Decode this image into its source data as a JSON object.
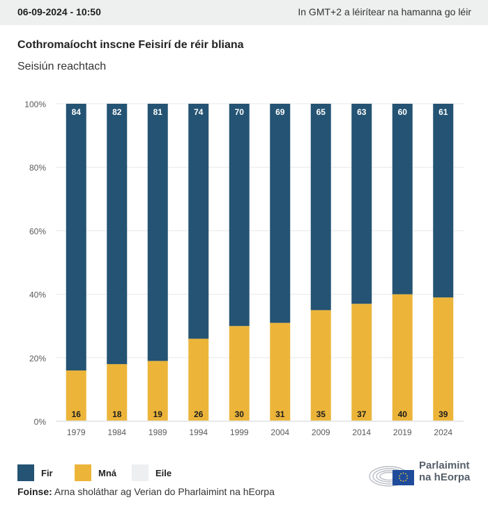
{
  "header": {
    "datetime": "06-09-2024 - 10:50",
    "timezone_note": "In GMT+2 a léirítear na hamanna go léir"
  },
  "title": "Cothromaíocht inscne Feisirí de réir bliana",
  "subtitle": "Seisiún reachtach",
  "legend": [
    {
      "label": "Fir",
      "color": "#245373"
    },
    {
      "label": "Mná",
      "color": "#ecb53a"
    },
    {
      "label": "Eile",
      "color": "#eeeff0"
    }
  ],
  "source": {
    "label": "Foinse:",
    "text": "Arna sholáthar ag Verian do Pharlaimint na hEorpa"
  },
  "logo": {
    "line1": "Parlaimint",
    "line2": "na hEorpa"
  },
  "chart_data": {
    "type": "bar",
    "stacked": true,
    "title": "Cothromaíocht inscne Feisirí de réir bliana",
    "subtitle": "Seisiún reachtach",
    "xlabel": "",
    "ylabel": "",
    "ylim": [
      0,
      100
    ],
    "yticks": [
      "0%",
      "20%",
      "40%",
      "60%",
      "80%",
      "100%"
    ],
    "ytick_values": [
      0,
      20,
      40,
      60,
      80,
      100
    ],
    "grid": true,
    "legend_position": "bottom-left",
    "categories": [
      "1979",
      "1984",
      "1989",
      "1994",
      "1999",
      "2004",
      "2009",
      "2014",
      "2019",
      "2024"
    ],
    "series": [
      {
        "name": "Mná",
        "color": "#ecb53a",
        "values": [
          16,
          18,
          19,
          26,
          30,
          31,
          35,
          37,
          40,
          39
        ]
      },
      {
        "name": "Fir",
        "color": "#245373",
        "values": [
          84,
          82,
          81,
          74,
          70,
          69,
          65,
          63,
          60,
          61
        ]
      },
      {
        "name": "Eile",
        "color": "#eeeff0",
        "values": [
          0,
          0,
          0,
          0,
          0,
          0,
          0,
          0,
          0,
          0
        ]
      }
    ]
  }
}
